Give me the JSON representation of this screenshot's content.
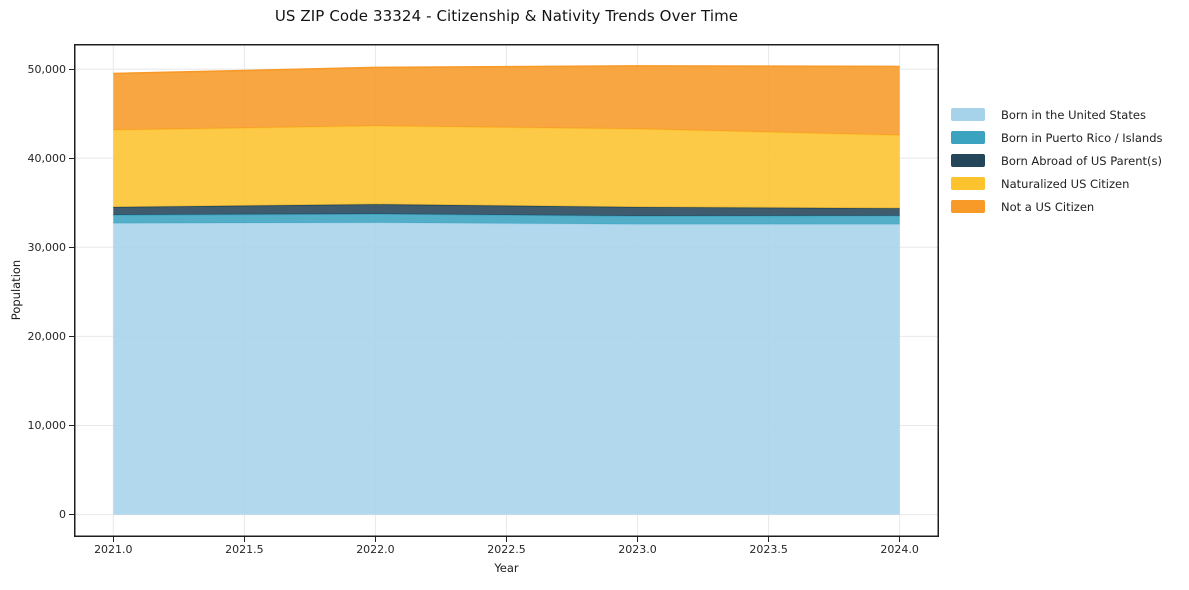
{
  "page": {
    "title": "US ZIP Code 33324 - Citizenship & Nativity Trends Over Time"
  },
  "chart_data": {
    "type": "area",
    "stacked": true,
    "title": "US ZIP Code 33324 - Citizenship & Nativity Trends Over Time",
    "xlabel": "Year",
    "ylabel": "Population",
    "x": [
      2021,
      2022,
      2023,
      2024
    ],
    "series": [
      {
        "name": "Born in the United States",
        "color": "#a6d3ea",
        "values": [
          32700,
          32760,
          32580,
          32580
        ]
      },
      {
        "name": "Born in Puerto Rico / Islands",
        "color": "#3ba3c0",
        "values": [
          930,
          980,
          930,
          960
        ]
      },
      {
        "name": "Born Abroad of US Parent(s)",
        "color": "#23465a",
        "values": [
          890,
          1090,
          1010,
          840
        ]
      },
      {
        "name": "Naturalized US Citizen",
        "color": "#fdc32f",
        "values": [
          8640,
          8790,
          8760,
          8190
        ]
      },
      {
        "name": "Not a US Citizen",
        "color": "#f79a28",
        "values": [
          6340,
          6560,
          7070,
          7720
        ]
      }
    ],
    "totals": [
      49500,
      50180,
      50350,
      50290
    ],
    "xlim": [
      2020.85,
      2024.15
    ],
    "ylim": [
      -2515,
      52815
    ],
    "xticks": [
      {
        "v": 2021.0,
        "label": "2021.0"
      },
      {
        "v": 2021.5,
        "label": "2021.5"
      },
      {
        "v": 2022.0,
        "label": "2022.0"
      },
      {
        "v": 2022.5,
        "label": "2022.5"
      },
      {
        "v": 2023.0,
        "label": "2023.0"
      },
      {
        "v": 2023.5,
        "label": "2023.5"
      },
      {
        "v": 2024.0,
        "label": "2024.0"
      }
    ],
    "yticks": [
      {
        "v": 0,
        "label": "0"
      },
      {
        "v": 10000,
        "label": "10,000"
      },
      {
        "v": 20000,
        "label": "20,000"
      },
      {
        "v": 30000,
        "label": "30,000"
      },
      {
        "v": 40000,
        "label": "40,000"
      },
      {
        "v": 50000,
        "label": "50,000"
      }
    ],
    "grid": true,
    "legend_position": "right-outside",
    "fill_opacity": 0.88,
    "grid_color": "#e8e8e8",
    "frame_color": "#1f1f1f",
    "tick_color": "#222222",
    "background": "#ffffff"
  }
}
